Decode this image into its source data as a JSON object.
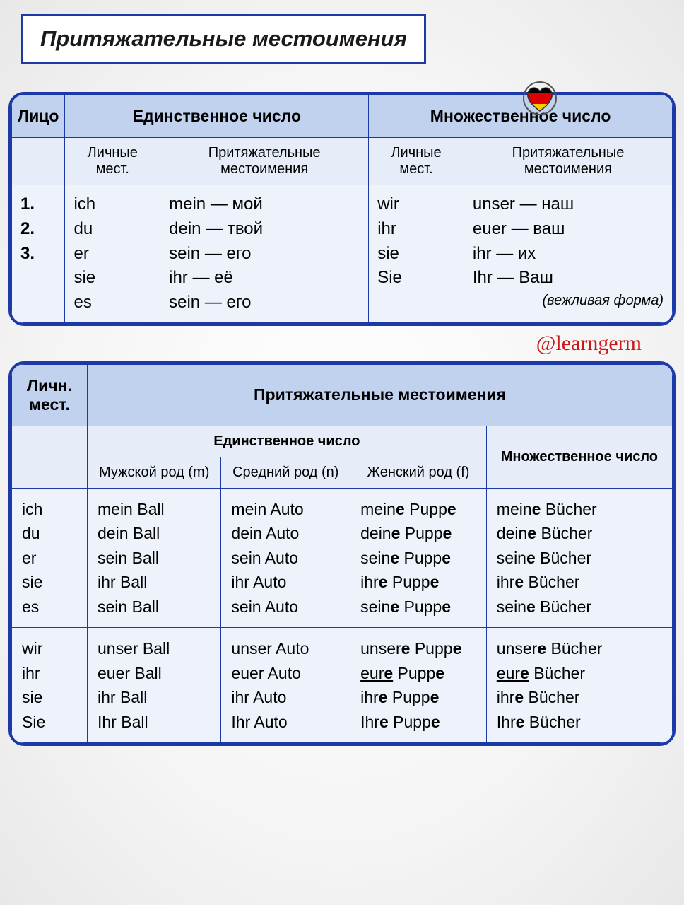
{
  "title": "Притяжательные местоимения",
  "flag_colors": {
    "top": "#000000",
    "mid": "#dd0000",
    "bot": "#ffce00"
  },
  "attribution": "@learngerm",
  "table1": {
    "h_person": "Лицо",
    "h_sing": "Единственное число",
    "h_plur": "Множественное число",
    "sub_personal": "Личные мест.",
    "sub_poss": "Притяжательные местоимения",
    "persons": [
      "1.",
      "2.",
      "3."
    ],
    "sing_personal": [
      "ich",
      "du",
      "er",
      "sie",
      "es"
    ],
    "sing_poss": [
      "mein — мой",
      "dein — твой",
      "sein — его",
      "ihr — её",
      "sein — его"
    ],
    "plur_personal": [
      "wir",
      "ihr",
      "sie",
      "Sie"
    ],
    "plur_poss": [
      "unser — наш",
      "euer — ваш",
      "ihr — их",
      "Ihr — Ваш"
    ],
    "note": "(вежливая форма)"
  },
  "table2": {
    "h_pers": "Личн. мест.",
    "h_poss": "Притяжательные местоимения",
    "h_sing": "Единственное число",
    "h_plur": "Множественное число",
    "h_m": "Мужской род (m)",
    "h_n": "Средний род (n)",
    "h_f": "Женский род (f)",
    "block1_pers": [
      "ich",
      "du",
      "er",
      "sie",
      "es"
    ],
    "block1_m": [
      "mein Ball",
      "dein Ball",
      "sein Ball",
      "ihr Ball",
      "sein Ball"
    ],
    "block1_n": [
      "mein Auto",
      "dein Auto",
      "sein Auto",
      "ihr Auto",
      "sein Auto"
    ],
    "block1_f": [
      "meine Puppe",
      "deine Puppe",
      "seine Puppe",
      "ihre Puppe",
      "seine Puppe"
    ],
    "block1_p": [
      "meine Bücher",
      "deine Bücher",
      "seine Bücher",
      "ihre Bücher",
      "seine Bücher"
    ],
    "block2_pers": [
      "wir",
      "ihr",
      "sie",
      "Sie"
    ],
    "block2_m": [
      "unser Ball",
      "euer Ball",
      "ihr Ball",
      "Ihr Ball"
    ],
    "block2_n": [
      "unser Auto",
      "euer Auto",
      "ihr Auto",
      "Ihr Auto"
    ],
    "block2_f": [
      "unsere Puppe",
      "eure Puppe",
      "ihre Puppe",
      "Ihre Puppe"
    ],
    "block2_p": [
      "unsere Bücher",
      "eure Bücher",
      "ihre Bücher",
      "Ihre Bücher"
    ],
    "underline_rows_block2": [
      1
    ]
  },
  "style": {
    "border_color": "#1d39a8",
    "header_bg": "#c1d2ef",
    "subheader_bg": "#e6edf9",
    "cell_bg": "#eef3fb",
    "attrib_color": "#c91818",
    "title_fontsize": 31,
    "cell_fontsize": 24
  }
}
